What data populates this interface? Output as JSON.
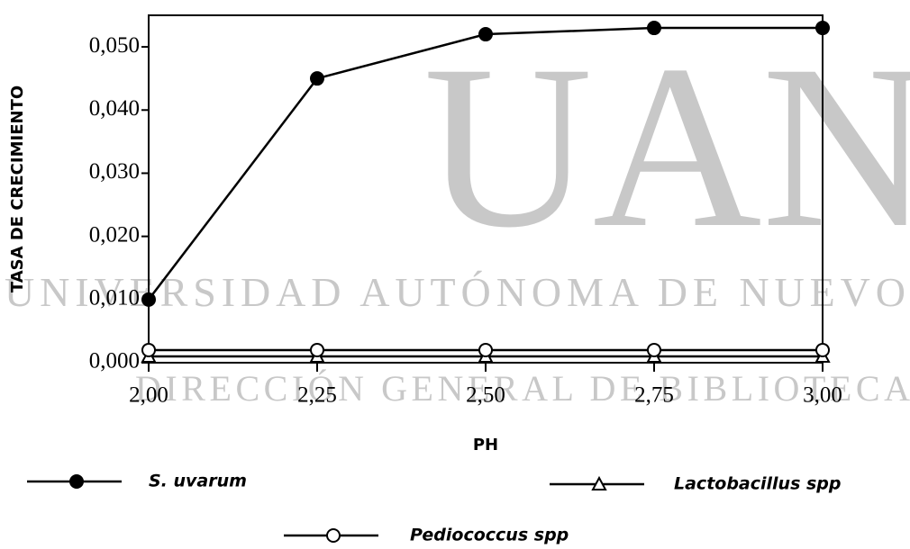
{
  "chart_data": {
    "type": "line",
    "watermark": [
      "UANL",
      "UNIVERSIDAD AUTÓNOMA DE NUEVO",
      "DIRECCIÓN GENERAL DE BIBLIOTECA"
    ],
    "xlabel": "PH",
    "ylabel": "TASA DE CRECIMIENTO",
    "x": [
      2.0,
      2.25,
      2.5,
      2.75,
      3.0
    ],
    "xlim": [
      2.0,
      3.0
    ],
    "xticks": [
      {
        "value": 2.0,
        "label": "2,00"
      },
      {
        "value": 2.25,
        "label": "2,25"
      },
      {
        "value": 2.5,
        "label": "2,50"
      },
      {
        "value": 2.75,
        "label": "2,75"
      },
      {
        "value": 3.0,
        "label": "3,00"
      }
    ],
    "ylim": [
      0,
      0.055
    ],
    "yticks": [
      {
        "value": 0,
        "label": "0,000"
      },
      {
        "value": 0.01,
        "label": "0,010"
      },
      {
        "value": 0.02,
        "label": "0,020"
      },
      {
        "value": 0.03,
        "label": "0,030"
      },
      {
        "value": 0.04,
        "label": "0,040"
      },
      {
        "value": 0.05,
        "label": "0,050"
      }
    ],
    "series": [
      {
        "name": "S. uvarum",
        "color": "#000000",
        "marker": "filled-circle",
        "values": [
          0.01,
          0.045,
          0.052,
          0.053,
          0.053
        ]
      },
      {
        "name": "Lactobacillus spp",
        "color": "#000000",
        "marker": "open-triangle",
        "values": [
          0.001,
          0.001,
          0.001,
          0.001,
          0.001
        ]
      },
      {
        "name": "Pediococcus spp",
        "color": "#000000",
        "marker": "open-circle",
        "values": [
          0.002,
          0.002,
          0.002,
          0.002,
          0.002
        ]
      }
    ]
  }
}
